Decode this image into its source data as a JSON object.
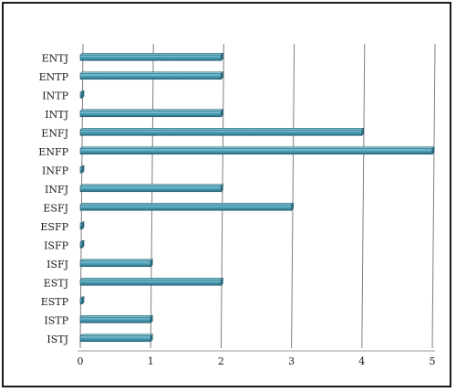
{
  "chart_data": {
    "type": "bar",
    "orientation": "horizontal",
    "title": "",
    "xlabel": "",
    "ylabel": "",
    "categories": [
      "ENTJ",
      "ENTP",
      "INTP",
      "INTJ",
      "ENFJ",
      "ENFP",
      "INFP",
      "INFJ",
      "ESFJ",
      "ESFP",
      "ISFP",
      "ISFJ",
      "ESTJ",
      "ESTP",
      "ISTP",
      "ISTJ"
    ],
    "values": [
      2,
      2,
      0,
      2,
      4,
      5,
      0,
      2,
      3,
      0,
      0,
      1,
      2,
      0,
      1,
      1
    ],
    "xlim": [
      0,
      5
    ],
    "xticks": [
      0,
      1,
      2,
      3,
      4,
      5
    ],
    "grid": "vertical",
    "legend": "none",
    "colors": {
      "bar": "#4b9fb6",
      "bar_top": "#7cc3d4",
      "bar_edge": "#1f5566",
      "grid": "#7f7f7f"
    }
  }
}
